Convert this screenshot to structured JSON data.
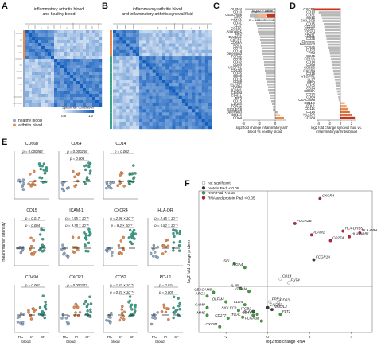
{
  "panels": {
    "A": {
      "label": "A",
      "title": "inflammatory arthritis blood\nand healthy blood",
      "colorbar": {
        "title": "Spearman correlation",
        "ticks": [
          "0.8",
          "1.0"
        ]
      },
      "legend": [
        {
          "label": "healthy blood",
          "color": "#8fa8c8"
        },
        {
          "label": "arthritis blood",
          "color": "#e8894a"
        },
        {
          "label": "arthritis synovial fluid",
          "color": "#3aa38a"
        }
      ]
    },
    "B": {
      "label": "B",
      "title": "inflammatory arthritis blood\nand inflammatory arthritis synovial fluid"
    },
    "C": {
      "label": "C",
      "legend_title": "log10 P value",
      "legend_ticks": [
        "P > 0.05",
        "-2",
        "-4"
      ],
      "markers": [
        "OLFM4",
        "CD10",
        "CEACAM8",
        "MPO",
        "CD11A",
        "CD31",
        "LL37",
        "CD11C",
        "Arginase1",
        "Nrf2",
        "Elastase",
        "CXCR1",
        "CD66A",
        "PDL1",
        "CD24",
        "CD14",
        "Defensin3",
        "TCRab",
        "CD35",
        "CD32",
        "CD64",
        "VEGFR1",
        "CD11B",
        "CD45",
        "CD33",
        "CD16",
        "CD69",
        "HLADR",
        "CD66B",
        "ICAM1",
        "CD49d",
        "CD62L",
        "PR3",
        "CD15",
        "CD184",
        "TCRab",
        "SIGLEC8",
        "Defensin3",
        "CD11c",
        "CD64"
      ],
      "values": [
        -3.8,
        -3.1,
        -2.9,
        -2.7,
        -2.5,
        -2.4,
        -2.3,
        -2.2,
        -2.1,
        -2.0,
        -1.9,
        -1.9,
        -1.8,
        -1.8,
        -1.7,
        -1.6,
        -1.6,
        -1.5,
        -1.5,
        -1.4,
        -1.4,
        -1.3,
        -1.3,
        -1.2,
        -1.2,
        -1.1,
        -1.0,
        -1.0,
        -0.9,
        -0.9,
        -0.8,
        -0.7,
        -0.6,
        -0.5,
        -0.4,
        -0.3,
        -0.3,
        0.3,
        0.6,
        1.1
      ],
      "colors": [
        "#b8b8b8",
        "#b8b8b8",
        "#b8b8b8",
        "#b8b8b8",
        "#b8b8b8",
        "#b8b8b8",
        "#b8b8b8",
        "#b8b8b8",
        "#b8b8b8",
        "#b8b8b8",
        "#b8b8b8",
        "#b8b8b8",
        "#b8b8b8",
        "#b8b8b8",
        "#b8b8b8",
        "#b8b8b8",
        "#b8b8b8",
        "#b8b8b8",
        "#b8b8b8",
        "#b8b8b8",
        "#b8b8b8",
        "#b8b8b8",
        "#b8b8b8",
        "#b8b8b8",
        "#b8b8b8",
        "#b8b8b8",
        "#b8b8b8",
        "#b8b8b8",
        "#b8b8b8",
        "#b8b8b8",
        "#b8b8b8",
        "#b8b8b8",
        "#b8b8b8",
        "#b8b8b8",
        "#b8b8b8",
        "#b8b8b8",
        "#b8b8b8",
        "#b8b8b8",
        "#f2b48c",
        "#e8894a"
      ],
      "xlabel": "log2 fold change inflammatory arthritis\nblood vs healthy blood"
    },
    "D": {
      "label": "D",
      "markers": [
        "CXCR1",
        "CD10",
        "CD31",
        "CD16",
        "SIGLEC8",
        "CD15",
        "CD11B",
        "CD66A",
        "CD49d",
        "CD62L",
        "CD35",
        "Elastase",
        "Defensin3",
        "TCRab",
        "CD33",
        "PR3",
        "CD45",
        "CD11A",
        "CD14",
        "CD69",
        "CD66B",
        "CXCR4",
        "CD16",
        "VEGFR1",
        "LL37",
        "MPO",
        "CD35",
        "CD24",
        "CD66A",
        "CD32",
        "CD64",
        "CEACAM8",
        "CD11C",
        "PDL1",
        "CD11c",
        "CD14",
        "HLADR",
        "CD184"
      ],
      "values": [
        -4.8,
        -3.9,
        -3.5,
        -3.3,
        -3.2,
        -3.0,
        -2.9,
        -2.8,
        -2.7,
        -2.6,
        -2.5,
        -2.4,
        -2.3,
        -2.2,
        -2.0,
        -1.9,
        -1.8,
        -1.7,
        -1.6,
        -1.5,
        -1.4,
        -1.3,
        -1.2,
        -1.1,
        -1.0,
        -0.9,
        -0.8,
        -0.7,
        -0.6,
        -0.5,
        -0.4,
        -0.3,
        0.8,
        1.1,
        1.4,
        1.7,
        2.1,
        2.6
      ],
      "colors": [
        "#c63418",
        "#b8b8b8",
        "#b8b8b8",
        "#b8b8b8",
        "#b8b8b8",
        "#b8b8b8",
        "#b8b8b8",
        "#b8b8b8",
        "#b8b8b8",
        "#b8b8b8",
        "#b8b8b8",
        "#b8b8b8",
        "#b8b8b8",
        "#b8b8b8",
        "#b8b8b8",
        "#b8b8b8",
        "#b8b8b8",
        "#b8b8b8",
        "#b8b8b8",
        "#b8b8b8",
        "#b8b8b8",
        "#b8b8b8",
        "#b8b8b8",
        "#b8b8b8",
        "#b8b8b8",
        "#b8b8b8",
        "#b8b8b8",
        "#b8b8b8",
        "#b8b8b8",
        "#b8b8b8",
        "#b8b8b8",
        "#b8b8b8",
        "#f2b48c",
        "#f0a070",
        "#e8894a",
        "#e07040",
        "#d45a2a",
        "#c63418"
      ],
      "xlabel": "log2 fold change synovial fluid vs.\ninflammatory arthritis blood"
    },
    "E": {
      "label": "E",
      "ylabel": "mean marker intensity",
      "xticks": [
        "HC",
        "IA",
        "SF"
      ],
      "xgroup": "blood",
      "subplots": [
        {
          "title": "CD66b",
          "p1": "p = 0.000862",
          "p2": ""
        },
        {
          "title": "CD64",
          "p1": "p = 0.000256",
          "p2": "p = 0.006"
        },
        {
          "title": "CD14",
          "p1": "p = 0.002",
          "p2": ""
        },
        {
          "title": "",
          "p1": "",
          "p2": ""
        },
        {
          "title": "CD15",
          "p1": "p = 0.017",
          "p2": "p = 0.004"
        },
        {
          "title": "ICAM-1",
          "p1": "p = 1.55 × 10⁻⁵",
          "p2": "p = 9.78 × 10⁻⁵"
        },
        {
          "title": "CXCR4",
          "p1": "p = 2.96 × 10⁻⁷",
          "p2": "p = 8.2 × 10⁻⁷"
        },
        {
          "title": "HLA-DR",
          "p1": "p = 2.45 × 10⁻⁵",
          "p2": "p = 5.82 × 10⁻⁵"
        },
        {
          "title": "CD49d",
          "p1": "p = 0.001",
          "p2": ""
        },
        {
          "title": "CXCR1",
          "p1": "p = 0.000373",
          "p2": ""
        },
        {
          "title": "CD32",
          "p1": "p = 1.82 × 10⁻⁵",
          "p2": "p = 0.37 × 10⁻⁵"
        },
        {
          "title": "PD-L1",
          "p1": "p = 0.024",
          "p2": "p = 0.009"
        }
      ]
    },
    "F": {
      "label": "F",
      "legend": [
        {
          "label": "not significant",
          "color": "#ffffff"
        },
        {
          "label": "protein Padj < 0.05",
          "color": "#3a3a3a"
        },
        {
          "label": "RNA Padj < 0.05",
          "color": "#3aa33a"
        },
        {
          "label": "RNA and protein Padj < 0.05",
          "color": "#c0233a"
        }
      ],
      "xlabel": "log2 fold change RNA",
      "ylabel": "log2 fold change protein",
      "xticks": [
        "-2",
        "0",
        "2",
        "4"
      ],
      "points": [
        {
          "name": "CXCR4",
          "x": 2.5,
          "y": 4.6,
          "c": "#c0233a"
        },
        {
          "name": "FCGR2B",
          "x": 1.3,
          "y": 3.3,
          "c": "#c0233a"
        },
        {
          "name": "HLA-DRB5",
          "x": 3.6,
          "y": 2.9,
          "c": "#c0233a"
        },
        {
          "name": "HLA-DRA",
          "x": 4.4,
          "y": 2.8,
          "c": "#c0233a"
        },
        {
          "name": "HLA-DRB1",
          "x": 3.9,
          "y": 2.6,
          "c": "#c0233a"
        },
        {
          "name": "ICAM1",
          "x": 2.1,
          "y": 2.7,
          "c": "#c0233a"
        },
        {
          "name": "CD274",
          "x": 3.0,
          "y": 2.4,
          "c": "#c0233a"
        },
        {
          "name": "FCGR1A",
          "x": 2.2,
          "y": 1.4,
          "c": "#3a3a3a"
        },
        {
          "name": "SELL",
          "x": -1.6,
          "y": 1.2,
          "c": "#3aa33a"
        },
        {
          "name": "ITGA4",
          "x": -1.1,
          "y": 1.0,
          "c": "#3aa33a"
        },
        {
          "name": "CD14",
          "x": 0.6,
          "y": 0.4,
          "c": "#ffffff"
        },
        {
          "name": "FUT4",
          "x": 1.0,
          "y": 0.2,
          "c": "#ffffff"
        },
        {
          "name": "CEACAM8",
          "x": -2.6,
          "y": -0.3,
          "c": "#3aa33a"
        },
        {
          "name": "IL4R",
          "x": -1.3,
          "y": -0.1,
          "c": "#3aa33a"
        },
        {
          "name": "ITGAM",
          "x": -0.9,
          "y": -0.25,
          "c": "#3aa33a"
        },
        {
          "name": "ARG1",
          "x": -2.9,
          "y": -0.5,
          "c": "#3aa33a"
        },
        {
          "name": "OLFM4",
          "x": -2.0,
          "y": -0.8,
          "c": "#3aa33a"
        },
        {
          "name": "FPR1",
          "x": 0.1,
          "y": -0.8,
          "c": "#ffffff"
        },
        {
          "name": "CD63",
          "x": 0.5,
          "y": -0.85,
          "c": "#ffffff"
        },
        {
          "name": "NFE2L2",
          "x": 0.2,
          "y": -1.2,
          "c": "#3a3a3a"
        },
        {
          "name": "CXCR2",
          "x": 0.0,
          "y": -1.1,
          "c": "#3a3a3a"
        },
        {
          "name": "CD24",
          "x": -1.1,
          "y": -0.95,
          "c": "#3aa33a"
        },
        {
          "name": "CAMP",
          "x": -2.9,
          "y": -1.1,
          "c": "#3aa33a"
        },
        {
          "name": "SIGLEC8",
          "x": -1.4,
          "y": -1.25,
          "c": "#3aa33a"
        },
        {
          "name": "ITGB2",
          "x": -0.7,
          "y": -1.3,
          "c": "#3aa33a"
        },
        {
          "name": "ELANE",
          "x": -0.5,
          "y": -1.45,
          "c": "#3aa33a"
        },
        {
          "name": "CD44",
          "x": -0.7,
          "y": -1.5,
          "c": "#3aa33a"
        },
        {
          "name": "FLT1",
          "x": 0.6,
          "y": -1.45,
          "c": "#3aa33a"
        },
        {
          "name": "MME",
          "x": -2.9,
          "y": -1.5,
          "c": "#3aa33a"
        },
        {
          "name": "CD177",
          "x": -1.9,
          "y": -1.65,
          "c": "#3aa33a"
        },
        {
          "name": "ITGAL",
          "x": -1.2,
          "y": -1.6,
          "c": "#3aa33a"
        },
        {
          "name": "FCGR3B",
          "x": -0.3,
          "y": -1.8,
          "c": "#3aa33a"
        },
        {
          "name": "CXCR1",
          "x": -2.3,
          "y": -2.1,
          "c": "#3aa33a"
        }
      ]
    }
  }
}
